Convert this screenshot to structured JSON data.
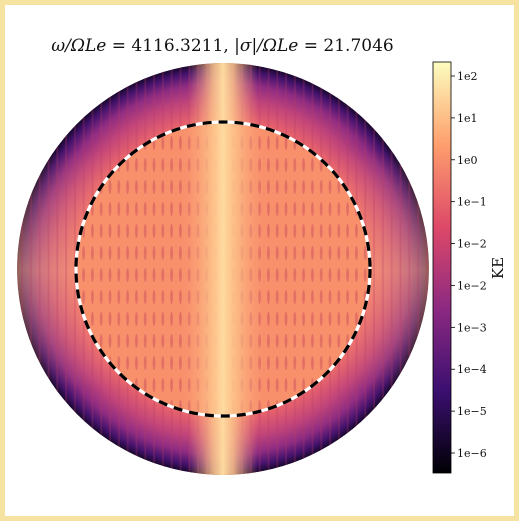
{
  "plot": {
    "title_parts": {
      "omega_lhs": "ω/ΩLe",
      "omega_value": "4116.3211",
      "sigma_lhs": "|σ|/ΩLe",
      "sigma_value": "21.7046"
    },
    "colorbar": {
      "label": "KE",
      "scale": "log",
      "tick_labels": [
        "1e2",
        "1e1",
        "1e0",
        "1e−1",
        "1e−2",
        "1e−2",
        "1e−3",
        "1e−4",
        "1e−5",
        "1e−6"
      ],
      "colormap": "magma",
      "colormap_stops": [
        "#000004",
        "#3b0f70",
        "#8c2981",
        "#de4968",
        "#fe9f6d",
        "#fcfdbf"
      ]
    },
    "inner_boundary": {
      "style": "dashed",
      "colors": [
        "#000000",
        "#ffffff"
      ]
    }
  }
}
